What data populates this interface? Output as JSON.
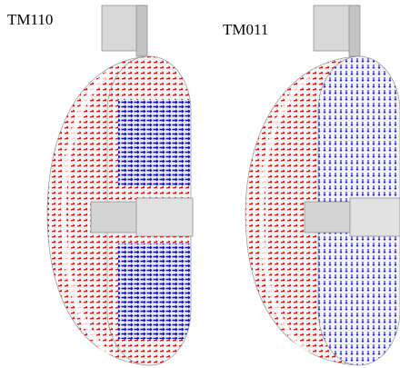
{
  "panels": [
    {
      "label": "TM110"
    },
    {
      "label": "TM011"
    }
  ]
}
